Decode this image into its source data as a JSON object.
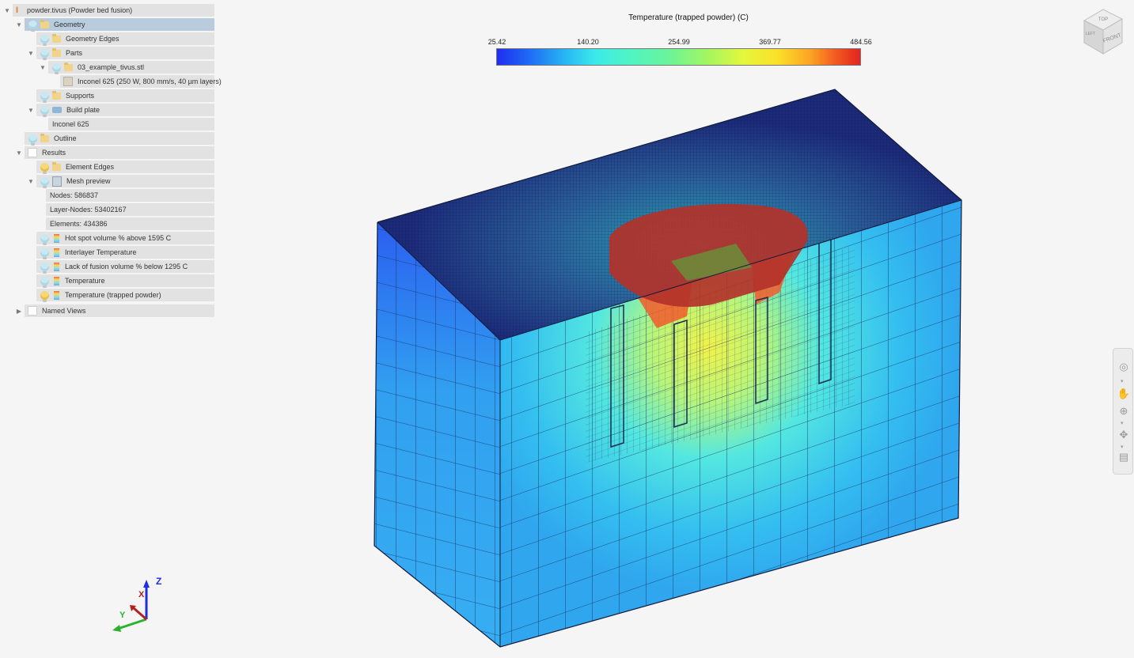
{
  "tree": {
    "items": [
      {
        "label": "powder.tivus (Powder bed fusion)",
        "icon": "project-icon"
      },
      {
        "label": "Geometry",
        "icon": "folder-icon"
      },
      {
        "label": "Geometry Edges",
        "icon": "folder-icon"
      },
      {
        "label": "Parts",
        "icon": "folder-icon"
      },
      {
        "label": "03_example_tivus.stl",
        "icon": "folder-icon"
      },
      {
        "label": "Inconel 625 (250 W, 800 mm/s, 40 µm layers)",
        "icon": "material-icon"
      },
      {
        "label": "Supports",
        "icon": "folder-icon"
      },
      {
        "label": "Build plate",
        "icon": "build-plate-icon"
      },
      {
        "label": "Inconel 625",
        "icon": ""
      },
      {
        "label": "Outline",
        "icon": "folder-icon"
      },
      {
        "label": "Results",
        "icon": "checkbox-icon"
      },
      {
        "label": "Element Edges",
        "icon": "folder-icon"
      },
      {
        "label": "Mesh preview",
        "icon": "mesh-icon"
      },
      {
        "label": "Nodes: 586837",
        "icon": ""
      },
      {
        "label": "Layer-Nodes: 53402167",
        "icon": ""
      },
      {
        "label": "Elements: 434386",
        "icon": ""
      },
      {
        "label": "Hot spot volume % above 1595 C",
        "icon": "colorbar-icon"
      },
      {
        "label": "Interlayer Temperature",
        "icon": "colorbar-icon"
      },
      {
        "label": "Lack of fusion volume % below 1295 C",
        "icon": "colorbar-icon"
      },
      {
        "label": "Temperature",
        "icon": "colorbar-icon"
      },
      {
        "label": "Temperature (trapped powder)",
        "icon": "colorbar-icon"
      },
      {
        "label": "Named Views",
        "icon": "checkbox-icon"
      }
    ]
  },
  "legend": {
    "title": "Temperature (trapped powder) (C)",
    "ticks": [
      "25.42",
      "140.20",
      "254.99",
      "369.77",
      "484.56"
    ],
    "colors": [
      "#1f2df0",
      "#27b8f3",
      "#69f49a",
      "#e4f73b",
      "#e2231f"
    ]
  },
  "view_cube": {
    "top": "TOP",
    "front": "FRONT",
    "left": "LEFT"
  },
  "triad": {
    "x": "X",
    "y": "Y",
    "z": "Z"
  },
  "colors": {
    "selected_row": "#b9ccdd",
    "row": "#e2e2e2",
    "background": "#f5f5f5"
  }
}
